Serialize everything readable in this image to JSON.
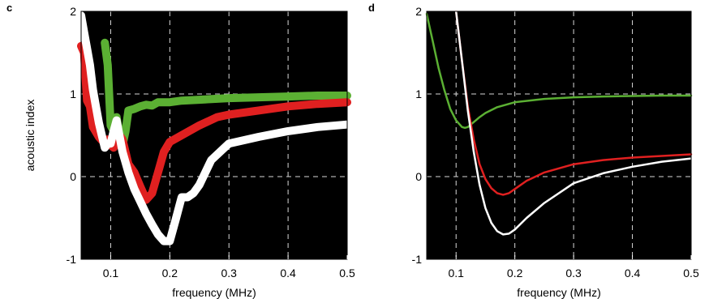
{
  "chart_data": [
    {
      "panel": "c",
      "type": "line",
      "xlabel": "frequency (MHz)",
      "ylabel": "acoustic index",
      "xlim": [
        0.05,
        0.5
      ],
      "ylim": [
        -1,
        2
      ],
      "xticks": [
        0.1,
        0.2,
        0.3,
        0.4,
        0.5
      ],
      "yticks": [
        -1,
        0,
        1,
        2
      ],
      "grid": true,
      "series": [
        {
          "color": "#5bb033",
          "x": [
            0.09,
            0.095,
            0.1,
            0.105,
            0.11,
            0.115,
            0.12,
            0.125,
            0.13,
            0.14,
            0.15,
            0.16,
            0.17,
            0.18,
            0.2,
            0.22,
            0.25,
            0.3,
            0.35,
            0.4,
            0.45,
            0.5
          ],
          "y": [
            1.62,
            1.35,
            0.62,
            0.55,
            0.72,
            0.5,
            0.38,
            0.55,
            0.8,
            0.82,
            0.85,
            0.87,
            0.86,
            0.9,
            0.9,
            0.92,
            0.93,
            0.95,
            0.96,
            0.97,
            0.98,
            0.98
          ]
        },
        {
          "color": "#e02020",
          "x": [
            0.05,
            0.055,
            0.06,
            0.065,
            0.07,
            0.08,
            0.09,
            0.095,
            0.1,
            0.105,
            0.11,
            0.115,
            0.12,
            0.13,
            0.14,
            0.15,
            0.16,
            0.17,
            0.18,
            0.19,
            0.2,
            0.22,
            0.25,
            0.28,
            0.3,
            0.35,
            0.4,
            0.45,
            0.5
          ],
          "y": [
            1.58,
            1.5,
            0.92,
            0.85,
            0.6,
            0.48,
            0.4,
            0.45,
            0.38,
            0.35,
            0.55,
            0.5,
            0.45,
            0.15,
            0.05,
            -0.12,
            -0.28,
            -0.2,
            0.05,
            0.3,
            0.42,
            0.5,
            0.62,
            0.72,
            0.75,
            0.8,
            0.85,
            0.88,
            0.9
          ]
        },
        {
          "color": "#ffffff",
          "x": [
            0.05,
            0.055,
            0.06,
            0.065,
            0.07,
            0.075,
            0.08,
            0.085,
            0.09,
            0.095,
            0.1,
            0.105,
            0.11,
            0.12,
            0.13,
            0.14,
            0.15,
            0.16,
            0.17,
            0.18,
            0.19,
            0.2,
            0.21,
            0.22,
            0.23,
            0.24,
            0.25,
            0.27,
            0.3,
            0.35,
            0.4,
            0.45,
            0.5
          ],
          "y": [
            1.95,
            1.75,
            1.55,
            1.35,
            1.05,
            0.85,
            0.65,
            0.5,
            0.35,
            0.4,
            0.4,
            0.55,
            0.68,
            0.3,
            0.05,
            -0.15,
            -0.3,
            -0.45,
            -0.58,
            -0.7,
            -0.78,
            -0.78,
            -0.52,
            -0.25,
            -0.25,
            -0.2,
            -0.1,
            0.2,
            0.4,
            0.48,
            0.55,
            0.6,
            0.63
          ]
        }
      ]
    },
    {
      "panel": "d",
      "type": "line",
      "xlabel": "frequency (MHz)",
      "ylabel": "",
      "xlim": [
        0.05,
        0.5
      ],
      "ylim": [
        -1,
        2
      ],
      "xticks": [
        0.1,
        0.2,
        0.3,
        0.4,
        0.5
      ],
      "yticks": [
        -1,
        0,
        1,
        2
      ],
      "grid": true,
      "series": [
        {
          "color": "#5bb033",
          "x": [
            0.05,
            0.06,
            0.07,
            0.08,
            0.09,
            0.1,
            0.11,
            0.115,
            0.12,
            0.13,
            0.14,
            0.15,
            0.17,
            0.2,
            0.25,
            0.3,
            0.35,
            0.4,
            0.45,
            0.5
          ],
          "y": [
            1.97,
            1.65,
            1.32,
            1.05,
            0.82,
            0.68,
            0.6,
            0.59,
            0.6,
            0.66,
            0.72,
            0.77,
            0.84,
            0.9,
            0.94,
            0.96,
            0.97,
            0.975,
            0.98,
            0.98
          ]
        },
        {
          "color": "#e02020",
          "x": [
            0.1,
            0.11,
            0.12,
            0.13,
            0.14,
            0.15,
            0.16,
            0.17,
            0.18,
            0.19,
            0.2,
            0.22,
            0.25,
            0.3,
            0.35,
            0.4,
            0.45,
            0.5
          ],
          "y": [
            2.0,
            1.4,
            0.85,
            0.45,
            0.15,
            -0.03,
            -0.14,
            -0.2,
            -0.22,
            -0.2,
            -0.15,
            -0.05,
            0.05,
            0.15,
            0.2,
            0.23,
            0.25,
            0.27
          ]
        },
        {
          "color": "#ffffff",
          "x": [
            0.1,
            0.11,
            0.12,
            0.13,
            0.14,
            0.15,
            0.16,
            0.17,
            0.18,
            0.19,
            0.2,
            0.22,
            0.25,
            0.3,
            0.35,
            0.4,
            0.45,
            0.5
          ],
          "y": [
            2.0,
            1.4,
            0.8,
            0.3,
            -0.1,
            -0.38,
            -0.56,
            -0.66,
            -0.7,
            -0.69,
            -0.64,
            -0.5,
            -0.32,
            -0.08,
            0.04,
            0.12,
            0.18,
            0.22
          ]
        }
      ]
    }
  ]
}
